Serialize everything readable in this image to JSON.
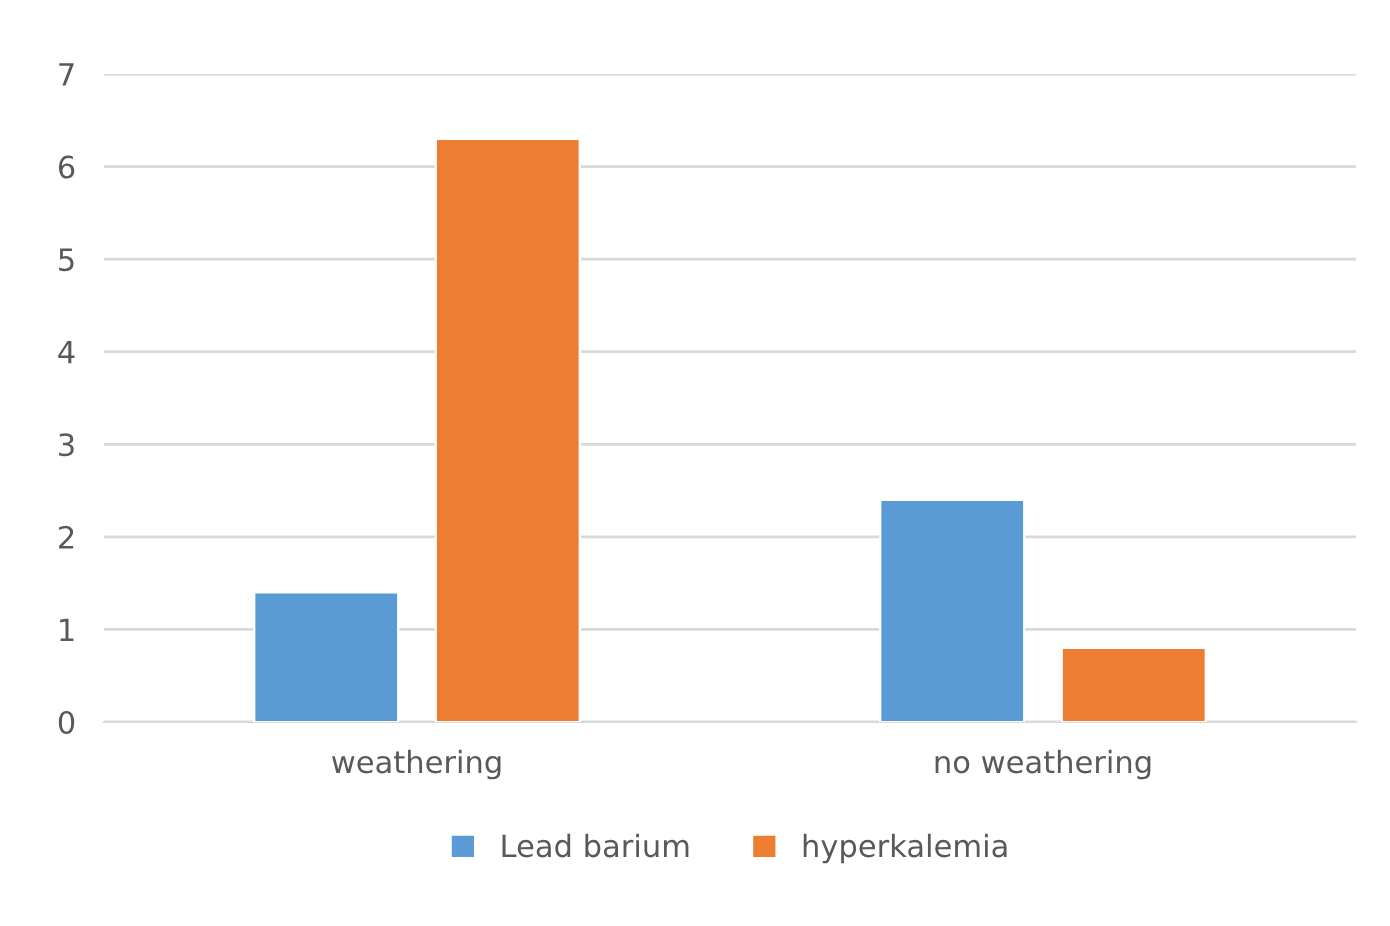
{
  "chart_data": {
    "type": "bar",
    "categories": [
      "weathering",
      "no weathering"
    ],
    "series": [
      {
        "name": "Lead barium",
        "color": "#5b9bd5",
        "values": [
          1.4,
          2.4
        ]
      },
      {
        "name": "hyperkalemia",
        "color": "#ed7d31",
        "values": [
          6.3,
          0.8
        ]
      }
    ],
    "ylim": [
      0,
      7
    ],
    "yticks": [
      0,
      1,
      2,
      3,
      4,
      5,
      6,
      7
    ],
    "grid": "y",
    "legend": "bottom"
  }
}
